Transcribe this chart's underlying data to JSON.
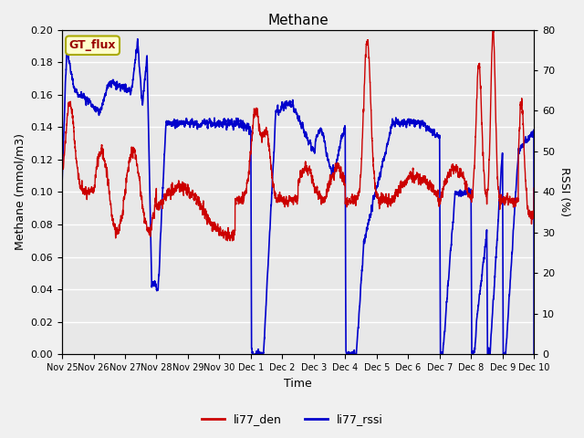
{
  "title": "Methane",
  "xlabel": "Time",
  "ylabel_left": "Methane (mmol/m3)",
  "ylabel_right": "RSSI (%)",
  "annotation": "GT_flux",
  "ylim_left": [
    0.0,
    0.2
  ],
  "ylim_right": [
    0,
    80
  ],
  "yticks_left": [
    0.0,
    0.02,
    0.04,
    0.06,
    0.08,
    0.1,
    0.12,
    0.14,
    0.16,
    0.18,
    0.2
  ],
  "yticks_right": [
    0,
    10,
    20,
    30,
    40,
    50,
    60,
    70,
    80
  ],
  "color_red": "#cc0000",
  "color_blue": "#0000cc",
  "fig_bg": "#f0f0f0",
  "plot_bg": "#e8e8e8",
  "grid_color": "#ffffff",
  "legend_red": "li77_den",
  "legend_blue": "li77_rssi",
  "xtick_labels": [
    "Nov 25",
    "Nov 26",
    "Nov 27",
    "Nov 28",
    "Nov 29",
    "Nov 30",
    "Dec 1",
    "Dec 2",
    "Dec 3",
    "Dec 4",
    "Dec 5",
    "Dec 6",
    "Dec 7",
    "Dec 8",
    "Dec 9",
    "Dec 10"
  ],
  "n_points": 5000,
  "lw_red": 1.0,
  "lw_blue": 1.2
}
